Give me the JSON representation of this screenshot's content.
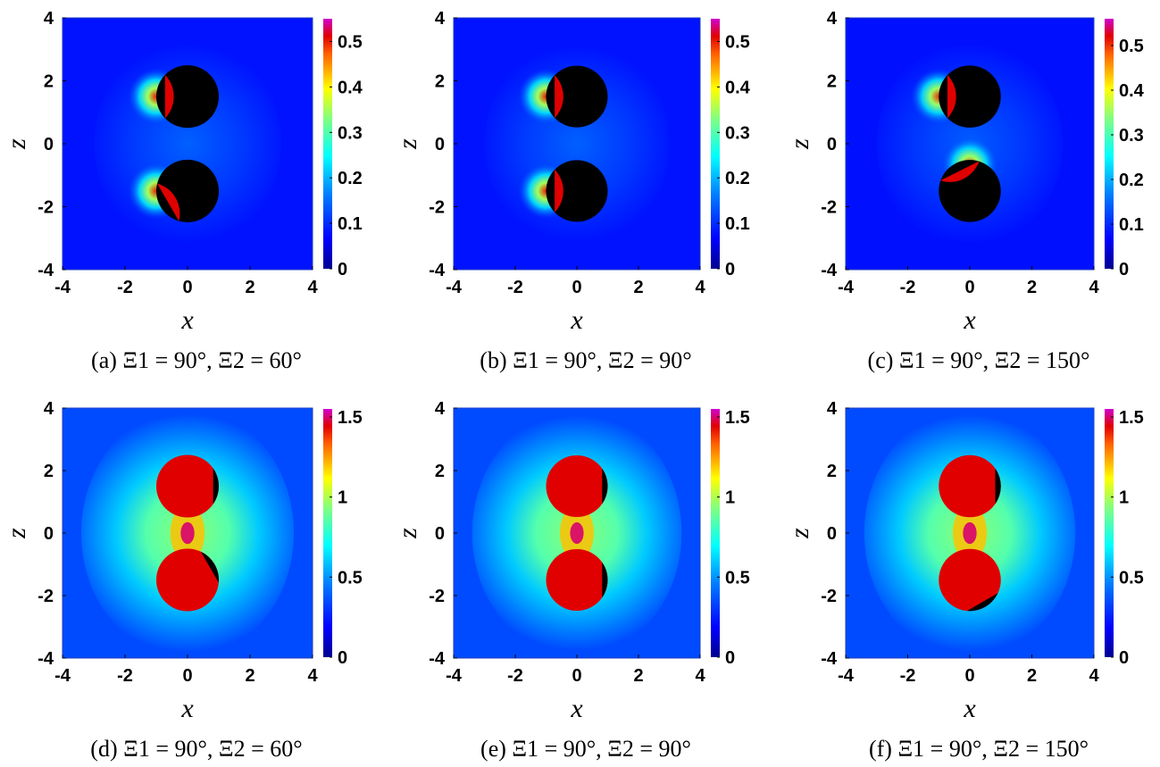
{
  "chart_data": [
    {
      "type": "heatmap",
      "caption": "(a)  Ξ1 = 90°, Ξ2 = 60°",
      "xlabel": "x",
      "ylabel": "z",
      "xlim": [
        -4,
        4
      ],
      "ylim": [
        -4,
        4
      ],
      "xticks": [
        "-4",
        "-2",
        "0",
        "2",
        "4"
      ],
      "yticks": [
        "-4",
        "-2",
        "0",
        "2",
        "4"
      ],
      "colorbar": {
        "min": 0,
        "max": 0.55,
        "ticks": [
          "0",
          "0.1",
          "0.2",
          "0.3",
          "0.4",
          "0.5"
        ]
      },
      "background_value": 0.08,
      "spheres": [
        {
          "center": [
            0,
            1.5
          ],
          "radius": 1,
          "cap_angle_deg": 90,
          "glow_side": "left",
          "fill_color": "#000000",
          "cap_color": "#e00000"
        },
        {
          "center": [
            0,
            -1.5
          ],
          "radius": 1,
          "cap_angle_deg": 60,
          "glow_side": "left",
          "fill_color": "#000000",
          "cap_color": "#e00000"
        }
      ]
    },
    {
      "type": "heatmap",
      "caption": "(b)  Ξ1 = 90°, Ξ2 = 90°",
      "xlabel": "x",
      "ylabel": "z",
      "xlim": [
        -4,
        4
      ],
      "ylim": [
        -4,
        4
      ],
      "xticks": [
        "-4",
        "-2",
        "0",
        "2",
        "4"
      ],
      "yticks": [
        "-4",
        "-2",
        "0",
        "2",
        "4"
      ],
      "colorbar": {
        "min": 0,
        "max": 0.55,
        "ticks": [
          "0",
          "0.1",
          "0.2",
          "0.3",
          "0.4",
          "0.5"
        ]
      },
      "background_value": 0.08,
      "spheres": [
        {
          "center": [
            0,
            1.5
          ],
          "radius": 1,
          "cap_angle_deg": 90,
          "glow_side": "left",
          "fill_color": "#000000",
          "cap_color": "#e00000"
        },
        {
          "center": [
            0,
            -1.5
          ],
          "radius": 1,
          "cap_angle_deg": 90,
          "glow_side": "left",
          "fill_color": "#000000",
          "cap_color": "#e00000"
        }
      ]
    },
    {
      "type": "heatmap",
      "caption": "(c)  Ξ1 = 90°, Ξ2 = 150°",
      "xlabel": "x",
      "ylabel": "z",
      "xlim": [
        -4,
        4
      ],
      "ylim": [
        -4,
        4
      ],
      "xticks": [
        "-4",
        "-2",
        "0",
        "2",
        "4"
      ],
      "yticks": [
        "-4",
        "-2",
        "0",
        "2",
        "4"
      ],
      "colorbar": {
        "min": 0,
        "max": 0.56,
        "ticks": [
          "0",
          "0.1",
          "0.2",
          "0.3",
          "0.4",
          "0.5"
        ]
      },
      "background_value": 0.08,
      "spheres": [
        {
          "center": [
            0,
            1.5
          ],
          "radius": 1,
          "cap_angle_deg": 90,
          "glow_side": "left",
          "fill_color": "#000000",
          "cap_color": "#e00000"
        },
        {
          "center": [
            0,
            -1.5
          ],
          "radius": 1,
          "cap_angle_deg": 150,
          "glow_side": "top",
          "fill_color": "#000000",
          "cap_color": "#e00000"
        }
      ]
    },
    {
      "type": "heatmap",
      "caption": "(d)  Ξ1 = 90°, Ξ2 = 60°",
      "xlabel": "x",
      "ylabel": "z",
      "xlim": [
        -4,
        4
      ],
      "ylim": [
        -4,
        4
      ],
      "xticks": [
        "-4",
        "-2",
        "0",
        "2",
        "4"
      ],
      "yticks": [
        "-4",
        "-2",
        "0",
        "2",
        "4"
      ],
      "colorbar": {
        "min": 0,
        "max": 1.55,
        "ticks": [
          "0",
          "0.5",
          "1",
          "1.5"
        ]
      },
      "background_value": 0.35,
      "spheres": [
        {
          "center": [
            0,
            1.5
          ],
          "radius": 1,
          "cap_angle_deg": 90,
          "fill_color": "#e00000",
          "cap_color": "#000000"
        },
        {
          "center": [
            0,
            -1.5
          ],
          "radius": 1,
          "cap_angle_deg": 60,
          "fill_color": "#e00000",
          "cap_color": "#000000"
        }
      ]
    },
    {
      "type": "heatmap",
      "caption": "(e)  Ξ1 = 90°, Ξ2 = 90°",
      "xlabel": "x",
      "ylabel": "z",
      "xlim": [
        -4,
        4
      ],
      "ylim": [
        -4,
        4
      ],
      "xticks": [
        "-4",
        "-2",
        "0",
        "2",
        "4"
      ],
      "yticks": [
        "-4",
        "-2",
        "0",
        "2",
        "4"
      ],
      "colorbar": {
        "min": 0,
        "max": 1.55,
        "ticks": [
          "0",
          "0.5",
          "1",
          "1.5"
        ]
      },
      "background_value": 0.35,
      "spheres": [
        {
          "center": [
            0,
            1.5
          ],
          "radius": 1,
          "cap_angle_deg": 90,
          "fill_color": "#e00000",
          "cap_color": "#000000"
        },
        {
          "center": [
            0,
            -1.5
          ],
          "radius": 1,
          "cap_angle_deg": 90,
          "fill_color": "#e00000",
          "cap_color": "#000000"
        }
      ]
    },
    {
      "type": "heatmap",
      "caption": "(f)  Ξ1 = 90°, Ξ2 = 150°",
      "xlabel": "x",
      "ylabel": "z",
      "xlim": [
        -4,
        4
      ],
      "ylim": [
        -4,
        4
      ],
      "xticks": [
        "-4",
        "-2",
        "0",
        "2",
        "4"
      ],
      "yticks": [
        "-4",
        "-2",
        "0",
        "2",
        "4"
      ],
      "colorbar": {
        "min": 0,
        "max": 1.55,
        "ticks": [
          "0",
          "0.5",
          "1",
          "1.5"
        ]
      },
      "background_value": 0.35,
      "spheres": [
        {
          "center": [
            0,
            1.5
          ],
          "radius": 1,
          "cap_angle_deg": 90,
          "fill_color": "#e00000",
          "cap_color": "#000000"
        },
        {
          "center": [
            0,
            -1.5
          ],
          "radius": 1,
          "cap_angle_deg": 150,
          "fill_color": "#e00000",
          "cap_color": "#000000"
        }
      ]
    }
  ]
}
